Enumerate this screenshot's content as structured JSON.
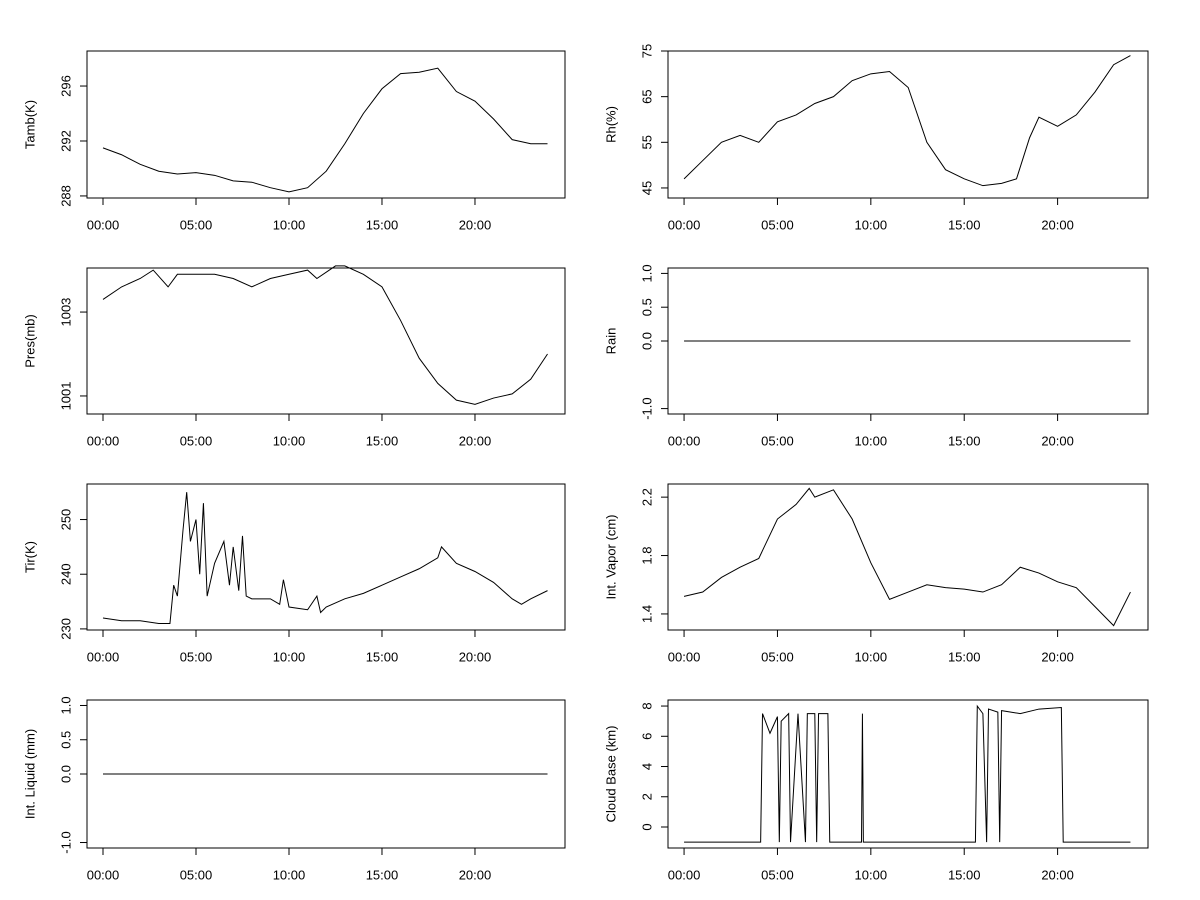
{
  "chart_data": [
    {
      "type": "line",
      "ylabel": "Tamb(K)",
      "color": "#000000",
      "x": [
        0,
        1,
        2,
        3,
        4,
        5,
        6,
        7,
        8,
        9,
        10,
        11,
        12,
        13,
        14,
        15,
        16,
        17,
        18,
        19,
        20,
        21,
        22,
        23,
        23.9
      ],
      "values": [
        291.5,
        291.0,
        290.3,
        289.8,
        289.6,
        289.7,
        289.5,
        289.1,
        289.0,
        288.6,
        288.3,
        288.6,
        289.8,
        291.8,
        294.0,
        295.8,
        296.9,
        297.0,
        297.3,
        295.6,
        294.9,
        293.6,
        292.1,
        291.8,
        291.8
      ],
      "xlim": [
        -0.86,
        24.84
      ],
      "xticks": [
        {
          "value": 0,
          "label": "00:00"
        },
        {
          "value": 5,
          "label": "05:00"
        },
        {
          "value": 10,
          "label": "10:00"
        },
        {
          "value": 15,
          "label": "15:00"
        },
        {
          "value": 20,
          "label": "20:00"
        }
      ],
      "ylim": [
        287.85,
        298.55
      ],
      "yticks": [
        288,
        292,
        296
      ]
    },
    {
      "type": "line",
      "ylabel": "Rh(%)",
      "color": "#000000",
      "x": [
        0,
        1,
        2,
        3,
        4,
        5,
        6,
        7,
        8,
        9,
        10,
        11,
        12,
        13,
        14,
        15,
        16,
        17,
        17.8,
        18.5,
        19,
        20,
        21,
        22,
        23,
        23.9
      ],
      "values": [
        47,
        51,
        55,
        56.5,
        55,
        59.5,
        61,
        63.5,
        65,
        68.5,
        70,
        70.5,
        67,
        55,
        49,
        47,
        45.5,
        46,
        47,
        56,
        60.5,
        58.5,
        61,
        66,
        72,
        74
      ],
      "xlim": [
        -0.86,
        24.84
      ],
      "xticks": [
        {
          "value": 0,
          "label": "00:00"
        },
        {
          "value": 5,
          "label": "05:00"
        },
        {
          "value": 10,
          "label": "10:00"
        },
        {
          "value": 15,
          "label": "15:00"
        },
        {
          "value": 20,
          "label": "20:00"
        }
      ],
      "ylim": [
        42.8,
        75
      ],
      "yticks": [
        45,
        55,
        65,
        75
      ]
    },
    {
      "type": "line",
      "ylabel": "Pres(mb)",
      "color": "#000000",
      "x": [
        0,
        1,
        2,
        2.7,
        3.5,
        4,
        5,
        6,
        7,
        8,
        9,
        10,
        11,
        11.5,
        12.5,
        13,
        14,
        15,
        16,
        17,
        18,
        19,
        20,
        21,
        22,
        23,
        23.9
      ],
      "values": [
        1003.3,
        1003.6,
        1003.8,
        1004.0,
        1003.6,
        1003.9,
        1003.9,
        1003.9,
        1003.8,
        1003.6,
        1003.8,
        1003.9,
        1004.0,
        1003.8,
        1004.1,
        1004.1,
        1003.9,
        1003.6,
        1002.8,
        1001.9,
        1001.3,
        1000.9,
        1000.8,
        1000.95,
        1001.05,
        1001.4,
        1002.0
      ],
      "xlim": [
        -0.86,
        24.84
      ],
      "xticks": [
        {
          "value": 0,
          "label": "00:00"
        },
        {
          "value": 5,
          "label": "05:00"
        },
        {
          "value": 10,
          "label": "10:00"
        },
        {
          "value": 15,
          "label": "15:00"
        },
        {
          "value": 20,
          "label": "20:00"
        }
      ],
      "ylim": [
        1000.57,
        1004.05
      ],
      "yticks": [
        1001,
        1003
      ]
    },
    {
      "type": "line",
      "ylabel": "Rain",
      "color": "#000000",
      "x": [
        0,
        23.9
      ],
      "values": [
        0,
        0
      ],
      "xlim": [
        -0.86,
        24.84
      ],
      "xticks": [
        {
          "value": 0,
          "label": "00:00"
        },
        {
          "value": 5,
          "label": "05:00"
        },
        {
          "value": 10,
          "label": "10:00"
        },
        {
          "value": 15,
          "label": "15:00"
        },
        {
          "value": 20,
          "label": "20:00"
        }
      ],
      "ylim": [
        -1.08,
        1.08
      ],
      "yticks": [
        {
          "value": -1,
          "label": "-1.0"
        },
        {
          "value": 0,
          "label": "0.0"
        },
        0.5,
        {
          "value": 1,
          "label": "1.0"
        }
      ]
    },
    {
      "type": "line",
      "ylabel": "Tir(K)",
      "color": "#000000",
      "x": [
        0,
        1,
        2,
        3,
        3.6,
        3.8,
        4,
        4.3,
        4.5,
        4.7,
        5,
        5.2,
        5.4,
        5.6,
        6,
        6.5,
        6.8,
        7,
        7.3,
        7.5,
        7.7,
        8,
        9,
        9.5,
        9.7,
        10,
        11,
        11.5,
        11.7,
        12,
        13,
        14,
        15,
        16,
        17,
        18,
        18.2,
        19,
        20,
        21,
        22,
        22.5,
        23,
        23.9
      ],
      "values": [
        232,
        231.5,
        231.5,
        231,
        231,
        238,
        236,
        248,
        255,
        246,
        250,
        240,
        253,
        236,
        242,
        246,
        238,
        245,
        237,
        247,
        236,
        235.5,
        235.5,
        234.5,
        239,
        234,
        233.5,
        236,
        233,
        234,
        235.5,
        236.5,
        238,
        239.5,
        241,
        243,
        245,
        242,
        240.5,
        238.5,
        235.5,
        234.5,
        235.5,
        237
      ],
      "xlim": [
        -0.86,
        24.84
      ],
      "xticks": [
        {
          "value": 0,
          "label": "00:00"
        },
        {
          "value": 5,
          "label": "05:00"
        },
        {
          "value": 10,
          "label": "10:00"
        },
        {
          "value": 15,
          "label": "15:00"
        },
        {
          "value": 20,
          "label": "20:00"
        }
      ],
      "ylim": [
        229.8,
        256.5
      ],
      "yticks": [
        230,
        240,
        250
      ]
    },
    {
      "type": "line",
      "ylabel": "Int. Vapor (cm)",
      "color": "#000000",
      "x": [
        0,
        1,
        2,
        3,
        4,
        5,
        6,
        6.7,
        7,
        8,
        9,
        10,
        11,
        12,
        13,
        14,
        15,
        16,
        17,
        18,
        19,
        20,
        21,
        22,
        23,
        23.9
      ],
      "values": [
        1.52,
        1.55,
        1.65,
        1.72,
        1.78,
        2.05,
        2.15,
        2.26,
        2.2,
        2.25,
        2.05,
        1.75,
        1.5,
        1.55,
        1.6,
        1.58,
        1.57,
        1.55,
        1.6,
        1.72,
        1.68,
        1.62,
        1.58,
        1.45,
        1.32,
        1.55
      ],
      "xlim": [
        -0.86,
        24.84
      ],
      "xticks": [
        {
          "value": 0,
          "label": "00:00"
        },
        {
          "value": 5,
          "label": "05:00"
        },
        {
          "value": 10,
          "label": "10:00"
        },
        {
          "value": 15,
          "label": "15:00"
        },
        {
          "value": 20,
          "label": "20:00"
        }
      ],
      "ylim": [
        1.29,
        2.29
      ],
      "yticks": [
        1.4,
        1.8,
        2.2
      ]
    },
    {
      "type": "line",
      "ylabel": "Int. Liquid (mm)",
      "color": "#000000",
      "x": [
        0,
        23.9
      ],
      "values": [
        0,
        0
      ],
      "xlim": [
        -0.86,
        24.84
      ],
      "xticks": [
        {
          "value": 0,
          "label": "00:00"
        },
        {
          "value": 5,
          "label": "05:00"
        },
        {
          "value": 10,
          "label": "10:00"
        },
        {
          "value": 15,
          "label": "15:00"
        },
        {
          "value": 20,
          "label": "20:00"
        }
      ],
      "ylim": [
        -1.08,
        1.08
      ],
      "yticks": [
        {
          "value": -1,
          "label": "-1.0"
        },
        {
          "value": 0,
          "label": "0.0"
        },
        0.5,
        {
          "value": 1,
          "label": "1.0"
        }
      ]
    },
    {
      "type": "line",
      "ylabel": "Cloud Base (km)",
      "color": "#000000",
      "x": [
        0,
        4.1,
        4.2,
        4.6,
        5.0,
        5.1,
        5.2,
        5.6,
        5.7,
        6.1,
        6.5,
        6.6,
        7.0,
        7.1,
        7.2,
        7.7,
        7.8,
        9.5,
        9.55,
        9.6,
        15.6,
        15.7,
        16,
        16.2,
        16.3,
        16.8,
        16.9,
        17,
        18,
        19,
        20.2,
        20.3,
        23.9
      ],
      "values": [
        -1,
        -1,
        7.5,
        6.2,
        7.3,
        -1,
        7.0,
        7.5,
        -1,
        7.5,
        -1,
        7.5,
        7.5,
        -1,
        7.5,
        7.5,
        -1,
        -1,
        7.5,
        -1,
        -1,
        8,
        7.5,
        -1,
        7.8,
        7.6,
        -1,
        7.7,
        7.5,
        7.8,
        7.9,
        -1,
        -1
      ],
      "xlim": [
        -0.86,
        24.84
      ],
      "xticks": [
        {
          "value": 0,
          "label": "00:00"
        },
        {
          "value": 5,
          "label": "05:00"
        },
        {
          "value": 10,
          "label": "10:00"
        },
        {
          "value": 15,
          "label": "15:00"
        },
        {
          "value": 20,
          "label": "20:00"
        }
      ],
      "ylim": [
        -1.39,
        8.4
      ],
      "yticks": [
        0,
        2,
        4,
        6,
        8
      ]
    }
  ]
}
